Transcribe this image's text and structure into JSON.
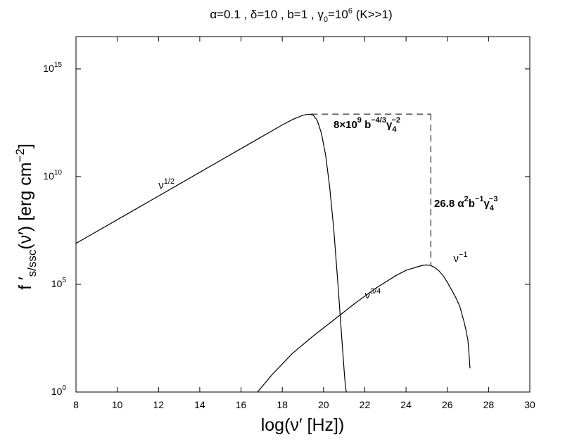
{
  "chart_data": {
    "type": "line",
    "title": "α=0.1 , δ=10 , b=1 , γ0=10^6 (K>>1)",
    "title_parts": {
      "text": "α=0.1 , δ=10 , b=1 , γ",
      "sub": "0",
      "mid": "=10",
      "sup": "6",
      "tail": " (K>>1)"
    },
    "xlabel": "log(ν′  [Hz])",
    "ylabel": {
      "main": "f ′",
      "sub": "s/ssc",
      "rest": "(ν′)  [erg cm",
      "sup": "−2",
      "close": "]"
    },
    "xlim": [
      8,
      30
    ],
    "ylim_log10": [
      0,
      16.5
    ],
    "x_scale": "linear",
    "y_scale": "log",
    "grid": false,
    "x_ticks": [
      8,
      10,
      12,
      14,
      16,
      18,
      20,
      22,
      24,
      26,
      28,
      30
    ],
    "y_ticks": [
      {
        "exp": 0,
        "base": "10",
        "sup": "0"
      },
      {
        "exp": 5,
        "base": "10",
        "sup": "5"
      },
      {
        "exp": 10,
        "base": "10",
        "sup": "10"
      },
      {
        "exp": 15,
        "base": "10",
        "sup": "15"
      }
    ],
    "series": [
      {
        "x": [
          8,
          9,
          10,
          11,
          12,
          13,
          14,
          15,
          16,
          17,
          18,
          18.5,
          19.0,
          19.3,
          19.5,
          19.7,
          19.9,
          20.1,
          20.3,
          20.5,
          20.7,
          20.9,
          21.0,
          21.05,
          21.1
        ],
        "log10_y": [
          6.9,
          7.45,
          8.0,
          8.55,
          9.1,
          9.65,
          10.2,
          10.75,
          11.3,
          11.85,
          12.4,
          12.65,
          12.85,
          12.9,
          12.85,
          12.6,
          12.0,
          11.0,
          9.5,
          7.5,
          5.0,
          2.3,
          1.0,
          0.4,
          0.0
        ],
        "color": "#000000"
      },
      {
        "x": [
          16.8,
          17.5,
          18.5,
          19.5,
          20.5,
          21.5,
          22.5,
          23.5,
          24.0,
          24.5,
          24.8,
          25.0,
          25.2,
          25.4,
          25.6,
          25.8,
          26.0,
          26.2,
          26.4,
          26.6,
          26.8,
          26.9,
          27.0,
          27.05,
          27.1
        ],
        "log10_y": [
          0,
          0.8,
          1.8,
          2.6,
          3.35,
          4.1,
          4.8,
          5.4,
          5.65,
          5.8,
          5.88,
          5.9,
          5.87,
          5.78,
          5.62,
          5.4,
          5.1,
          4.75,
          4.4,
          4.0,
          3.3,
          2.9,
          2.4,
          1.8,
          1.1
        ],
        "color": "#000000"
      }
    ],
    "curve_labels": [
      {
        "base": "ν",
        "sup": "1/2",
        "x": 12.0,
        "log10_y": 9.45
      },
      {
        "base": "ν",
        "sup": "3/4",
        "x": 22.0,
        "log10_y": 4.35
      },
      {
        "base": "ν",
        "sup": "−1",
        "x": 26.3,
        "log10_y": 6.05
      }
    ],
    "annotations": {
      "dashed_horizontal": {
        "x1": 19.4,
        "x2": 25.2,
        "log10_y": 12.9
      },
      "dashed_vertical": {
        "x": 25.2,
        "log10_y1": 12.9,
        "log10_y2": 5.9
      },
      "horizontal_label": {
        "lead": "8×10",
        "sup1": "9",
        "mid": " b",
        "sup2": "−4/3",
        "gamma": "γ",
        "sub": "4",
        "sup3": "−2"
      },
      "vertical_label": {
        "lead": "26.8 α",
        "sup1": "2",
        "mid": "b",
        "sup2": "−1",
        "gamma": "γ",
        "sub": "4",
        "sup3": "−3"
      }
    }
  }
}
